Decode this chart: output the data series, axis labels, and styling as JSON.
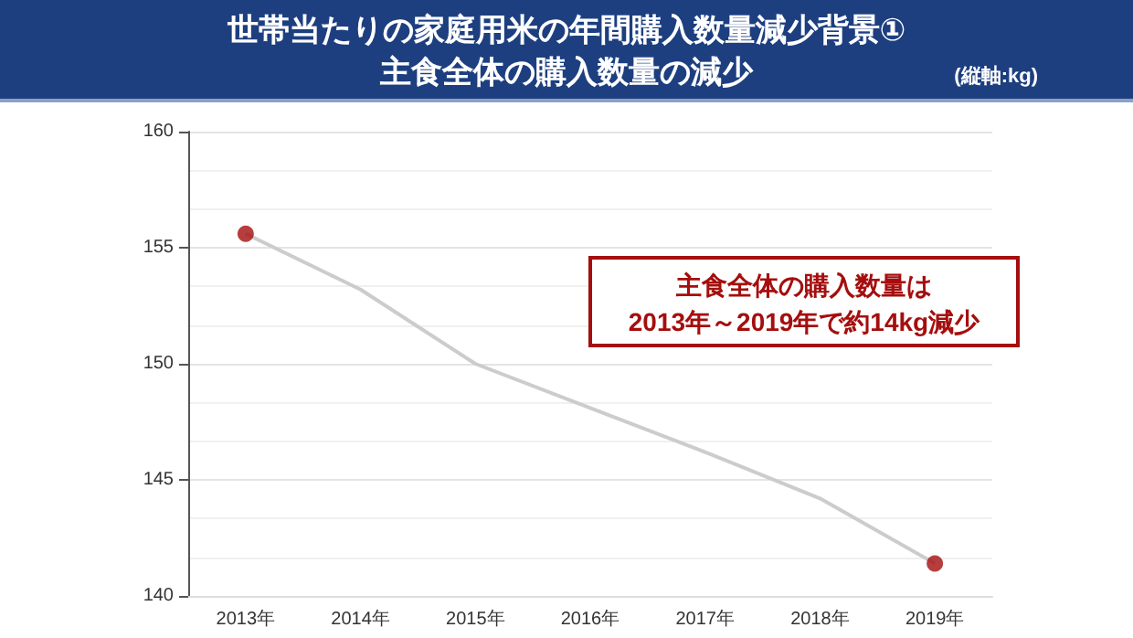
{
  "chart_data": {
    "type": "line",
    "title": "世帯当たりの家庭用米の年間購入数量減少背景①",
    "subtitle": "主食全体の購入数量の減少",
    "annotations": [
      "(縦軸:kg)",
      "主食全体の購入数量は\n2013年～2019年で約14kg減少"
    ],
    "categories": [
      "2013年",
      "2014年",
      "2015年",
      "2016年",
      "2017年",
      "2018年",
      "2019年"
    ],
    "series": [
      {
        "color": "#cccccc",
        "marker": "none",
        "values": [
          155.6,
          153.2,
          150.0,
          148.1,
          146.2,
          144.2,
          141.4
        ]
      },
      {
        "type": "scatter",
        "color": "#a50e0e",
        "marker": "circle",
        "x": [
          "2013年",
          "2019年"
        ],
        "values": [
          155.6,
          141.4
        ]
      }
    ],
    "ylim": [
      140,
      160
    ],
    "yticks": [
      140,
      145,
      150,
      155,
      160
    ],
    "grid": "y"
  }
}
